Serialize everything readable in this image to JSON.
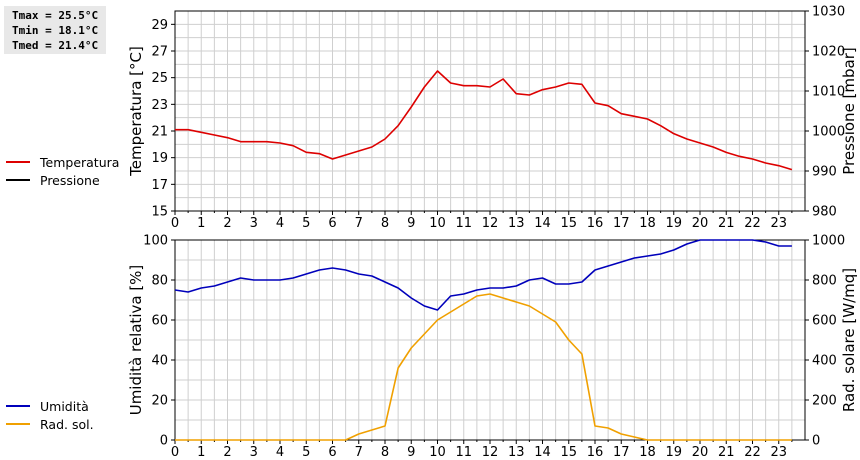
{
  "stats": [
    "Tmax = 25.5°C",
    "Tmin = 18.1°C",
    "Tmed = 21.4°C"
  ],
  "legend_top": [
    {
      "label": "Temperatura",
      "color": "#dd0000"
    },
    {
      "label": "Pressione",
      "color": "#000000"
    }
  ],
  "legend_bottom": [
    {
      "label": "Umidità",
      "color": "#0000bb"
    },
    {
      "label": "Rad. sol.",
      "color": "#f0a000"
    }
  ],
  "chart_data": [
    {
      "type": "line",
      "xlim": [
        0,
        24
      ],
      "xticks": [
        0,
        1,
        2,
        3,
        4,
        5,
        6,
        7,
        8,
        9,
        10,
        11,
        12,
        13,
        14,
        15,
        16,
        17,
        18,
        19,
        20,
        21,
        22,
        23
      ],
      "ylabel": "Temperatura [°C]",
      "ylim": [
        15,
        30
      ],
      "yticks": [
        15,
        17,
        19,
        21,
        23,
        25,
        27,
        29
      ],
      "y2label": "Pressione [mbar]",
      "y2lim": [
        980,
        1030
      ],
      "y2ticks": [
        980,
        990,
        1000,
        1010,
        1020,
        1030
      ],
      "grid": true,
      "series": [
        {
          "name": "Temperatura",
          "color": "#dd0000",
          "axis": "left",
          "x": [
            0,
            0.5,
            1,
            1.5,
            2,
            2.5,
            3,
            3.5,
            4,
            4.5,
            5,
            5.5,
            6,
            6.5,
            7,
            7.5,
            8,
            8.5,
            9,
            9.5,
            10,
            10.5,
            11,
            11.5,
            12,
            12.5,
            13,
            13.5,
            14,
            14.5,
            15,
            15.5,
            16,
            16.5,
            17,
            17.5,
            18,
            18.5,
            19,
            19.5,
            20,
            20.5,
            21,
            21.5,
            22,
            22.5,
            23,
            23.5
          ],
          "y": [
            21.1,
            21.1,
            20.9,
            20.7,
            20.5,
            20.2,
            20.2,
            20.2,
            20.1,
            19.9,
            19.4,
            19.3,
            18.9,
            19.2,
            19.5,
            19.8,
            20.4,
            21.4,
            22.8,
            24.3,
            25.5,
            24.6,
            24.4,
            24.4,
            24.3,
            24.9,
            23.8,
            23.7,
            24.1,
            24.3,
            24.6,
            24.5,
            23.1,
            22.9,
            22.3,
            22.1,
            21.9,
            21.4,
            20.8,
            20.4,
            20.1,
            19.8,
            19.4,
            19.1,
            18.9,
            18.6,
            18.4,
            18.1
          ]
        },
        {
          "name": "Pressione",
          "color": "#000000",
          "axis": "right",
          "x": [],
          "y": []
        }
      ]
    },
    {
      "type": "line",
      "xlim": [
        0,
        24
      ],
      "xticks": [
        0,
        1,
        2,
        3,
        4,
        5,
        6,
        7,
        8,
        9,
        10,
        11,
        12,
        13,
        14,
        15,
        16,
        17,
        18,
        19,
        20,
        21,
        22,
        23
      ],
      "ylabel": "Umidità relativa [%]",
      "ylim": [
        0,
        100
      ],
      "yticks": [
        0,
        20,
        40,
        60,
        80,
        100
      ],
      "y2label": "Rad. solare [W/mq]",
      "y2lim": [
        0,
        1000
      ],
      "y2ticks": [
        0,
        200,
        400,
        600,
        800,
        1000
      ],
      "grid": true,
      "series": [
        {
          "name": "Umidità",
          "color": "#0000bb",
          "axis": "left",
          "x": [
            0,
            0.5,
            1,
            1.5,
            2,
            2.5,
            3,
            3.5,
            4,
            4.5,
            5,
            5.5,
            6,
            6.5,
            7,
            7.5,
            8,
            8.5,
            9,
            9.5,
            10,
            10.5,
            11,
            11.5,
            12,
            12.5,
            13,
            13.5,
            14,
            14.5,
            15,
            15.5,
            16,
            16.5,
            17,
            17.5,
            18,
            18.5,
            19,
            19.5,
            20,
            20.5,
            21,
            21.5,
            22,
            22.5,
            23,
            23.5
          ],
          "y": [
            75,
            74,
            76,
            77,
            79,
            81,
            80,
            80,
            80,
            81,
            83,
            85,
            86,
            85,
            83,
            82,
            79,
            76,
            71,
            67,
            65,
            72,
            73,
            75,
            76,
            76,
            77,
            80,
            81,
            78,
            78,
            79,
            85,
            87,
            89,
            91,
            92,
            93,
            95,
            98,
            100,
            100,
            100,
            100,
            100,
            99,
            97,
            97
          ]
        },
        {
          "name": "Rad. sol.",
          "color": "#f0a000",
          "axis": "right",
          "x": [
            0,
            0.5,
            1,
            1.5,
            2,
            2.5,
            3,
            3.5,
            4,
            4.5,
            5,
            5.5,
            6,
            6.5,
            7,
            7.5,
            8,
            8.5,
            9,
            9.5,
            10,
            10.5,
            11,
            11.5,
            12,
            12.5,
            13,
            13.5,
            14,
            14.5,
            15,
            15.5,
            16,
            16.5,
            17,
            17.5,
            18,
            18.5,
            19,
            19.5,
            20,
            20.5,
            21,
            21.5,
            22,
            22.5,
            23,
            23.5
          ],
          "y": [
            0,
            0,
            0,
            0,
            0,
            0,
            0,
            0,
            0,
            0,
            0,
            0,
            0,
            0,
            30,
            50,
            70,
            360,
            460,
            530,
            600,
            640,
            680,
            720,
            730,
            710,
            690,
            670,
            630,
            590,
            500,
            430,
            70,
            60,
            30,
            15,
            0,
            0,
            0,
            0,
            0,
            0,
            0,
            0,
            0,
            0,
            0,
            0
          ]
        }
      ]
    }
  ]
}
